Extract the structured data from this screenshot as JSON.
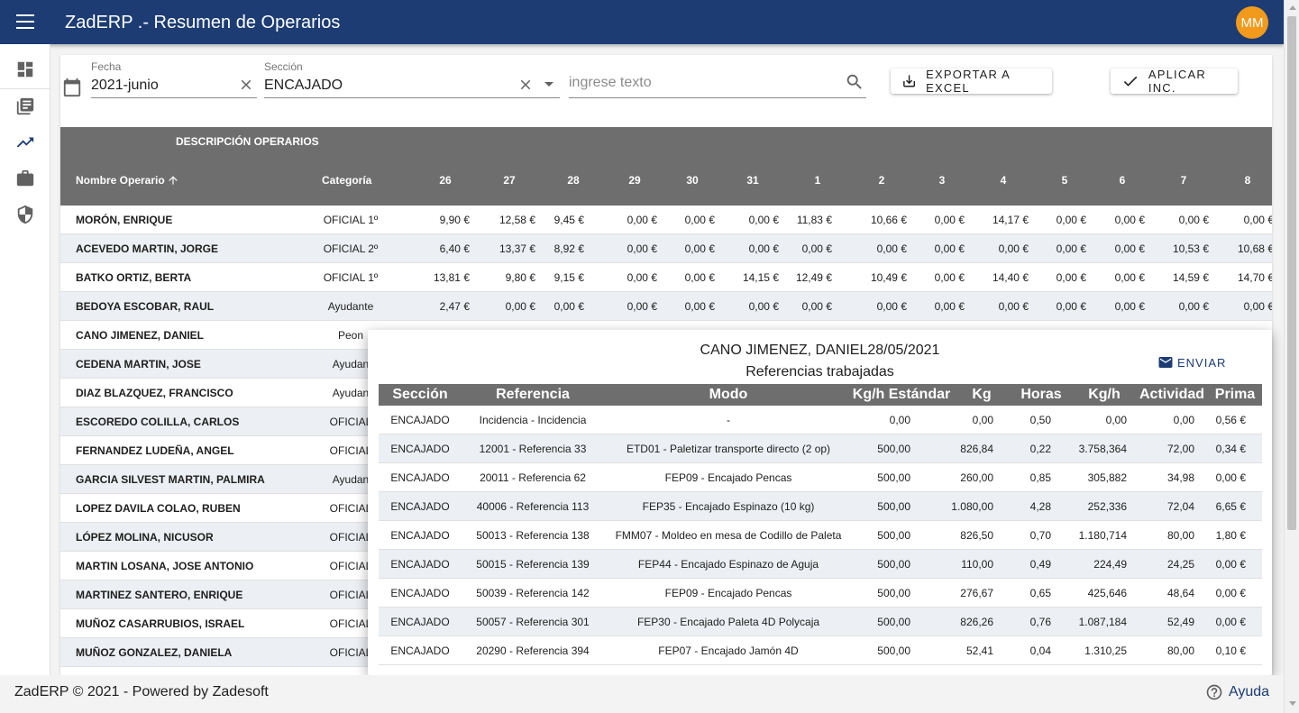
{
  "app": {
    "title": "ZadERP .- Resumen de Operarios",
    "avatar_initials": "MM"
  },
  "colors": {
    "topbar": "#1c3c73",
    "avatar": "#f29a1b",
    "table_header": "#6e6e6e",
    "row_alt": "#eceff3"
  },
  "sidebar": {
    "items": [
      {
        "icon": "dashboard-icon"
      },
      {
        "icon": "library-books-icon"
      },
      {
        "icon": "trending-up-icon"
      },
      {
        "icon": "briefcase-icon"
      },
      {
        "icon": "security-shield-icon"
      }
    ]
  },
  "filters": {
    "fecha_label": "Fecha",
    "fecha_value": "2021-junio",
    "seccion_label": "Sección",
    "seccion_value": "ENCAJADO",
    "search_placeholder": "ingrese texto",
    "export_label": "EXPORTAR A EXCEL",
    "apply_label": "APLICAR INC."
  },
  "table": {
    "group_header": "DESCRIPCIÓN OPERARIOS",
    "name_header": "Nombre Operario",
    "category_header": "Categoría",
    "day_headers": [
      "26",
      "27",
      "28",
      "29",
      "30",
      "31",
      "1",
      "2",
      "3",
      "4",
      "5",
      "6",
      "7",
      "8"
    ],
    "rows": [
      {
        "name": "MORÓN, ENRIQUE",
        "category": "OFICIAL 1º",
        "values": [
          "9,90 €",
          "12,58 €",
          "9,45 €",
          "0,00 €",
          "0,00 €",
          "0,00 €",
          "11,83 €",
          "10,66 €",
          "0,00 €",
          "14,17 €",
          "0,00 €",
          "0,00 €",
          "0,00 €",
          "0,00 €"
        ]
      },
      {
        "name": "ACEVEDO MARTIN, JORGE",
        "category": "OFICIAL 2º",
        "values": [
          "6,40 €",
          "13,37 €",
          "8,92 €",
          "0,00 €",
          "0,00 €",
          "0,00 €",
          "0,00 €",
          "0,00 €",
          "0,00 €",
          "0,00 €",
          "0,00 €",
          "0,00 €",
          "10,53 €",
          "10,68 €"
        ]
      },
      {
        "name": "BATKO ORTIZ, BERTA",
        "category": "OFICIAL 1º",
        "values": [
          "13,81 €",
          "9,80 €",
          "9,15 €",
          "0,00 €",
          "0,00 €",
          "14,15 €",
          "12,49 €",
          "10,49 €",
          "0,00 €",
          "14,40 €",
          "0,00 €",
          "0,00 €",
          "14,59 €",
          "14,70 €"
        ]
      },
      {
        "name": "BEDOYA ESCOBAR, RAUL",
        "category": "Ayudante",
        "values": [
          "2,47 €",
          "0,00 €",
          "0,00 €",
          "0,00 €",
          "0,00 €",
          "0,00 €",
          "0,00 €",
          "0,00 €",
          "0,00 €",
          "0,00 €",
          "0,00 €",
          "0,00 €",
          "0,00 €",
          "0,00 €"
        ]
      },
      {
        "name": "CANO JIMENEZ, DANIEL",
        "category": "Peon"
      },
      {
        "name": "CEDENA MARTIN, JOSE",
        "category": "Ayudan"
      },
      {
        "name": "DIAZ BLAZQUEZ, FRANCISCO",
        "category": "Ayudan"
      },
      {
        "name": "ESCOREDO COLILLA, CARLOS",
        "category": "OFICIAL"
      },
      {
        "name": "FERNANDEZ LUDEÑA, ANGEL",
        "category": "OFICIAL"
      },
      {
        "name": "GARCIA SILVEST MARTIN, PALMIRA",
        "category": "Ayudan"
      },
      {
        "name": "LOPEZ DAVILA COLAO, RUBEN",
        "category": "OFICIAL"
      },
      {
        "name": "LÓPEZ MOLINA, NICUSOR",
        "category": "OFICIAL"
      },
      {
        "name": "MARTIN LOSANA, JOSE ANTONIO",
        "category": "OFICIAL"
      },
      {
        "name": "MARTINEZ SANTERO, ENRIQUE",
        "category": "OFICIAL"
      },
      {
        "name": "MUÑOZ CASARRUBIOS, ISRAEL",
        "category": "OFICIAL"
      },
      {
        "name": "MUÑOZ GONZALEZ, DANIELA",
        "category": "OFICIAL"
      }
    ]
  },
  "popup": {
    "title": "CANO JIMENEZ, DANIEL28/05/2021",
    "subtitle": "Referencias trabajadas",
    "send_label": "ENVIAR",
    "headers": [
      "Sección",
      "Referencia",
      "Modo",
      "Kg/h Estándar",
      "Kg",
      "Horas",
      "Kg/h",
      "Actividad",
      "Prima"
    ],
    "rows": [
      [
        "ENCAJADO",
        "Incidencia - Incidencia",
        "-",
        "0,00",
        "0,00",
        "0,50",
        "0,00",
        "0,00",
        "0,56 €"
      ],
      [
        "ENCAJADO",
        "12001 - Referencia 33",
        "ETD01 - Paletizar transporte directo (2 op)",
        "500,00",
        "826,84",
        "0,22",
        "3.758,364",
        "72,00",
        "0,34 €"
      ],
      [
        "ENCAJADO",
        "20011 - Referencia 62",
        "FEP09 - Encajado Pencas",
        "500,00",
        "260,00",
        "0,85",
        "305,882",
        "34,98",
        "0,00 €"
      ],
      [
        "ENCAJADO",
        "40006 - Referencia 113",
        "FEP35 - Encajado Espinazo (10 kg)",
        "500,00",
        "1.080,00",
        "4,28",
        "252,336",
        "72,04",
        "6,65 €"
      ],
      [
        "ENCAJADO",
        "50013 - Referencia 138",
        "FMM07 - Moldeo en mesa de Codillo de Paleta",
        "500,00",
        "826,50",
        "0,70",
        "1.180,714",
        "80,00",
        "1,80 €"
      ],
      [
        "ENCAJADO",
        "50015 - Referencia 139",
        "FEP44 - Encajado Espinazo de Aguja",
        "500,00",
        "110,00",
        "0,49",
        "224,49",
        "24,25",
        "0,00 €"
      ],
      [
        "ENCAJADO",
        "50039 - Referencia 142",
        "FEP09 - Encajado Pencas",
        "500,00",
        "276,67",
        "0,65",
        "425,646",
        "48,64",
        "0,00 €"
      ],
      [
        "ENCAJADO",
        "50057 - Referencia 301",
        "FEP30 - Encajado Paleta 4D Polycaja",
        "500,00",
        "826,26",
        "0,76",
        "1.087,184",
        "52,49",
        "0,00 €"
      ],
      [
        "ENCAJADO",
        "20290 - Referencia 394",
        "FEP07 - Encajado Jamón 4D",
        "500,00",
        "52,41",
        "0,04",
        "1.310,25",
        "80,00",
        "0,10 €"
      ]
    ]
  },
  "footer": {
    "text": "ZadERP © 2021 - Powered by Zadesoft",
    "help_label": "Ayuda"
  }
}
